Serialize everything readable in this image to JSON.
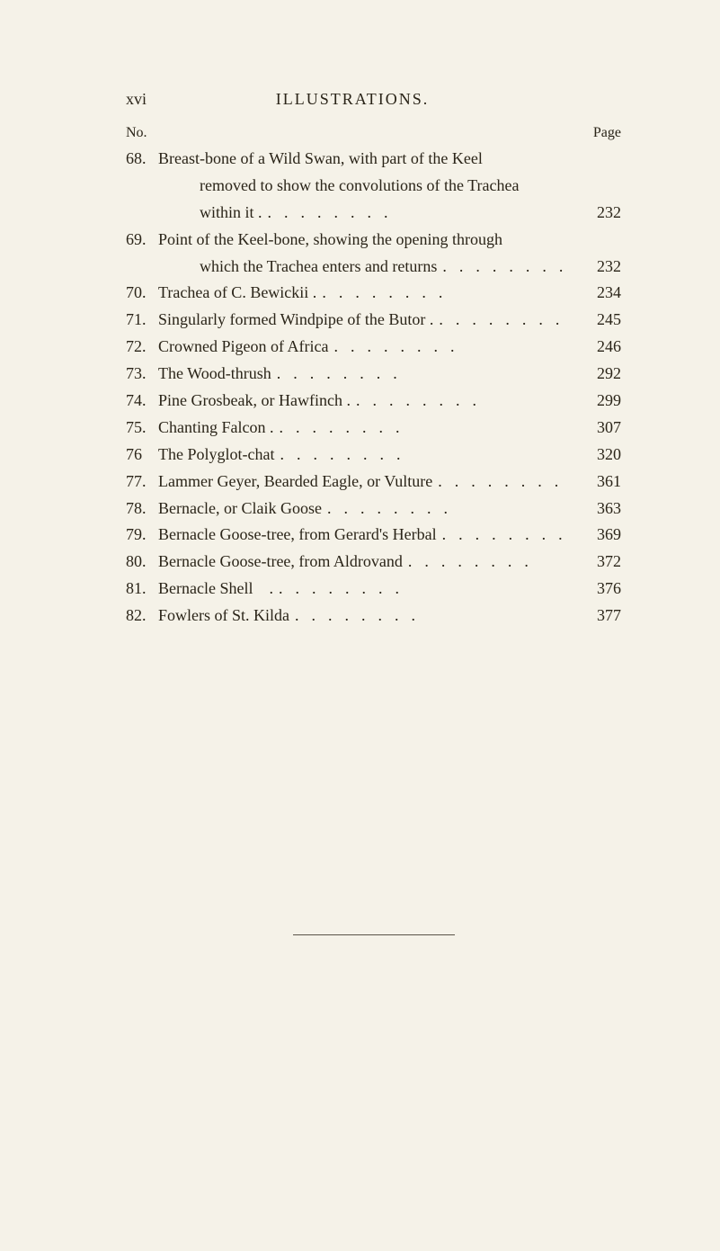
{
  "header": {
    "page_roman": "xvi",
    "section_title": "ILLUSTRATIONS."
  },
  "column_labels": {
    "no": "No.",
    "page": "Page"
  },
  "entries": [
    {
      "no": "68.",
      "lines": [
        "Breast-bone of a Wild Swan, with part of the Keel",
        "removed to show the convolutions of the Trachea",
        "within it ."
      ],
      "page": "232",
      "indent_first": false
    },
    {
      "no": "69.",
      "lines": [
        "Point of the Keel-bone, showing the opening through",
        "which the Trachea enters and returns"
      ],
      "page": "232",
      "indent_first": false
    },
    {
      "no": "70.",
      "lines": [
        "Trachea of C. Bewickii ."
      ],
      "page": "234"
    },
    {
      "no": "71.",
      "lines": [
        "Singularly formed Windpipe of the Butor ."
      ],
      "page": "245"
    },
    {
      "no": "72.",
      "lines": [
        "Crowned Pigeon of Africa"
      ],
      "page": "246"
    },
    {
      "no": "73.",
      "lines": [
        "The Wood-thrush"
      ],
      "page": "292"
    },
    {
      "no": "74.",
      "lines": [
        "Pine Grosbeak, or Hawfinch ."
      ],
      "page": "299"
    },
    {
      "no": "75.",
      "lines": [
        "Chanting Falcon ."
      ],
      "page": "307"
    },
    {
      "no": "76",
      "lines": [
        "The Polyglot-chat"
      ],
      "page": "320"
    },
    {
      "no": "77.",
      "lines": [
        "Lammer Geyer, Bearded Eagle, or Vulture"
      ],
      "page": "361"
    },
    {
      "no": "78.",
      "lines": [
        "Bernacle, or Claik Goose"
      ],
      "page": "363"
    },
    {
      "no": "79.",
      "lines": [
        "Bernacle Goose-tree, from Gerard's Herbal"
      ],
      "page": "369"
    },
    {
      "no": "80.",
      "lines": [
        "Bernacle Goose-tree, from Aldrovand"
      ],
      "page": "372"
    },
    {
      "no": "81.",
      "lines": [
        "Bernacle Shell    ."
      ],
      "page": "376"
    },
    {
      "no": "82.",
      "lines": [
        "Fowlers of St. Kilda"
      ],
      "page": "377"
    }
  ],
  "colors": {
    "background": "#f5f2e8",
    "text": "#2a2418",
    "rule": "#5a5448"
  }
}
